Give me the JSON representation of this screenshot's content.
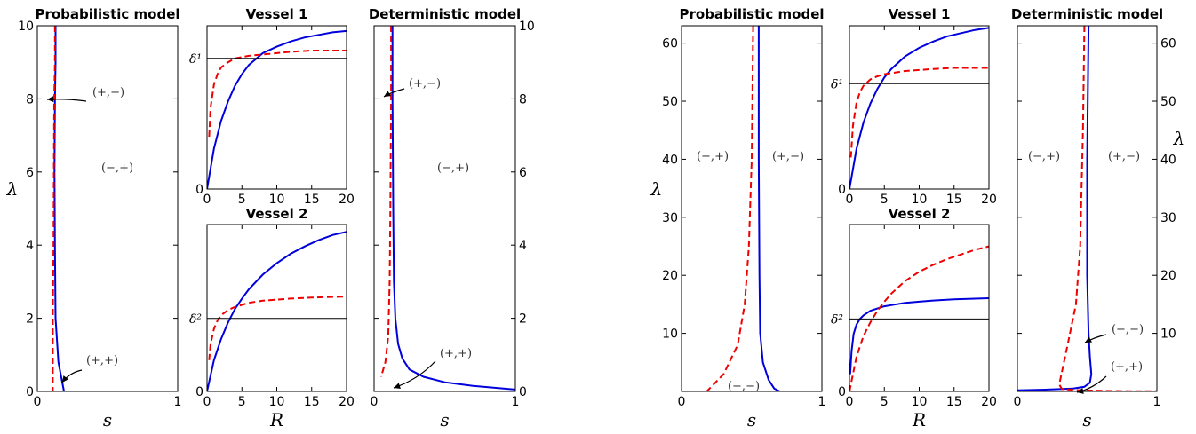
{
  "chart_data": [
    {
      "type": "line",
      "figure": "left",
      "title": "Probabilistic model",
      "xlabel": "s",
      "ylabel": "λ",
      "xlim": [
        0,
        1
      ],
      "ylim": [
        0,
        10
      ],
      "xticks": [
        "0",
        "1"
      ],
      "yticks": [
        "0",
        "2",
        "4",
        "6",
        "8",
        "10"
      ],
      "series": [
        {
          "color": "#0000dd",
          "style": "solid",
          "x": [
            0.13,
            0.13,
            0.125,
            0.122,
            0.125,
            0.13,
            0.15,
            0.19
          ],
          "y": [
            10,
            9,
            8,
            6,
            4,
            2,
            0.8,
            0
          ]
        },
        {
          "color": "#ee0000",
          "style": "dashed",
          "x": [
            0.125,
            0.125,
            0.12,
            0.118,
            0.115,
            0.11,
            0.11
          ],
          "y": [
            10,
            9,
            8,
            6,
            4,
            2,
            0
          ]
        }
      ],
      "annotations": [
        "(+,−)",
        "(−,+)",
        "(+,+)"
      ]
    },
    {
      "type": "line",
      "figure": "left",
      "title": "Vessel 1",
      "xlim": [
        0,
        20
      ],
      "ylim": [
        0,
        1.25
      ],
      "xticks": [
        "0",
        "5",
        "10",
        "15",
        "20"
      ],
      "yticks": [
        "0"
      ],
      "hline_label": "δ¹",
      "hline_y": 1,
      "series": [
        {
          "color": "#0000dd",
          "style": "solid",
          "x": [
            0,
            1,
            2,
            3,
            4,
            5,
            6,
            8,
            10,
            12,
            14,
            16,
            18,
            20
          ],
          "y": [
            0,
            0.31,
            0.52,
            0.67,
            0.79,
            0.88,
            0.95,
            1.04,
            1.09,
            1.13,
            1.16,
            1.18,
            1.2,
            1.21
          ]
        },
        {
          "color": "#ee0000",
          "style": "dashed",
          "x": [
            0.3,
            0.5,
            1,
            1.5,
            2,
            3,
            4,
            5,
            6,
            8,
            10,
            12,
            15,
            20
          ],
          "y": [
            0.4,
            0.62,
            0.8,
            0.88,
            0.93,
            0.97,
            1.0,
            1.01,
            1.02,
            1.03,
            1.04,
            1.05,
            1.06,
            1.06
          ]
        }
      ]
    },
    {
      "type": "line",
      "figure": "left",
      "title": "Vessel 2",
      "xlabel": "R",
      "xlim": [
        0,
        20
      ],
      "ylim": [
        0,
        1.6
      ],
      "xticks": [
        "0",
        "5",
        "10",
        "15",
        "20"
      ],
      "yticks": [
        "0"
      ],
      "hline_label": "δ²",
      "hline_y": 0.7,
      "series": [
        {
          "color": "#0000dd",
          "style": "solid",
          "x": [
            0,
            1,
            2,
            3,
            4,
            5,
            6,
            8,
            10,
            12,
            14,
            16,
            18,
            20
          ],
          "y": [
            0,
            0.3,
            0.5,
            0.66,
            0.79,
            0.89,
            0.98,
            1.12,
            1.23,
            1.32,
            1.39,
            1.45,
            1.5,
            1.53
          ]
        },
        {
          "color": "#ee0000",
          "style": "dashed",
          "x": [
            0.3,
            0.5,
            1,
            1.5,
            2,
            3,
            4,
            5,
            6,
            8,
            10,
            12,
            15,
            20
          ],
          "y": [
            0.3,
            0.45,
            0.6,
            0.68,
            0.73,
            0.78,
            0.81,
            0.83,
            0.85,
            0.87,
            0.88,
            0.89,
            0.9,
            0.91
          ]
        }
      ]
    },
    {
      "type": "line",
      "figure": "left",
      "title": "Deterministic model",
      "xlabel": "s",
      "xlim": [
        0,
        1
      ],
      "ylim": [
        0,
        10
      ],
      "xticks": [
        "0",
        "1"
      ],
      "yticks": [
        "0",
        "2",
        "4",
        "6",
        "8",
        "10"
      ],
      "series": [
        {
          "color": "#0000dd",
          "style": "solid",
          "x": [
            0.13,
            0.13,
            0.135,
            0.14,
            0.15,
            0.17,
            0.2,
            0.25,
            0.35,
            0.5,
            0.7,
            1.0
          ],
          "y": [
            10,
            8,
            5,
            3,
            2,
            1.3,
            0.9,
            0.6,
            0.4,
            0.25,
            0.15,
            0.05
          ]
        },
        {
          "color": "#ee0000",
          "style": "dashed",
          "x": [
            0.12,
            0.12,
            0.115,
            0.11,
            0.1,
            0.08,
            0.05
          ],
          "y": [
            10,
            8,
            5,
            3,
            1.5,
            0.8,
            0.4
          ]
        }
      ],
      "annotations": [
        "(+,−)",
        "(−,+)",
        "(+,+)"
      ]
    },
    {
      "type": "line",
      "figure": "right",
      "title": "Probabilistic model",
      "xlabel": "s",
      "ylabel": "λ",
      "xlim": [
        0,
        1
      ],
      "ylim": [
        0,
        63
      ],
      "xticks": [
        "0",
        "1"
      ],
      "yticks": [
        "10",
        "20",
        "30",
        "40",
        "50",
        "60"
      ],
      "series": [
        {
          "color": "#0000dd",
          "style": "solid",
          "x": [
            0.55,
            0.55,
            0.555,
            0.56,
            0.58,
            0.62,
            0.66,
            0.7
          ],
          "y": [
            63,
            40,
            20,
            10,
            5,
            2,
            0.5,
            0
          ]
        },
        {
          "color": "#ee0000",
          "style": "dashed",
          "x": [
            0.51,
            0.5,
            0.48,
            0.45,
            0.4,
            0.3,
            0.18
          ],
          "y": [
            63,
            40,
            25,
            15,
            8,
            3,
            0
          ]
        }
      ],
      "annotations": [
        "(−,+)",
        "(+,−)",
        "(−,−)"
      ]
    },
    {
      "type": "line",
      "figure": "right",
      "title": "Vessel 1",
      "xlim": [
        0,
        20
      ],
      "ylim": [
        0,
        1.55
      ],
      "xticks": [
        "0",
        "5",
        "10",
        "15",
        "20"
      ],
      "yticks": [
        "0"
      ],
      "hline_label": "δ¹",
      "hline_y": 1,
      "series": [
        {
          "color": "#0000dd",
          "style": "solid",
          "x": [
            0,
            1,
            2,
            3,
            4,
            5,
            6,
            8,
            10,
            12,
            14,
            16,
            18,
            20
          ],
          "y": [
            0,
            0.38,
            0.63,
            0.81,
            0.95,
            1.06,
            1.14,
            1.26,
            1.34,
            1.4,
            1.45,
            1.48,
            1.51,
            1.53
          ]
        },
        {
          "color": "#ee0000",
          "style": "dashed",
          "x": [
            0.2,
            0.5,
            1,
            1.5,
            2,
            3,
            4,
            5,
            6,
            8,
            10,
            12,
            15,
            20
          ],
          "y": [
            0.3,
            0.6,
            0.82,
            0.92,
            0.98,
            1.04,
            1.07,
            1.09,
            1.1,
            1.12,
            1.13,
            1.14,
            1.15,
            1.15
          ]
        }
      ]
    },
    {
      "type": "line",
      "figure": "right",
      "title": "Vessel 2",
      "xlabel": "R",
      "xlim": [
        0,
        20
      ],
      "ylim": [
        0,
        1.45
      ],
      "xticks": [
        "0",
        "5",
        "10",
        "15",
        "20"
      ],
      "yticks": [
        "0"
      ],
      "hline_label": "δ²",
      "hline_y": 0.63,
      "series": [
        {
          "color": "#0000dd",
          "style": "solid",
          "x": [
            0.1,
            0.3,
            0.6,
            1,
            1.5,
            2,
            3,
            4,
            5,
            6,
            8,
            10,
            12,
            15,
            20
          ],
          "y": [
            0.15,
            0.35,
            0.5,
            0.58,
            0.63,
            0.66,
            0.7,
            0.72,
            0.74,
            0.75,
            0.77,
            0.78,
            0.79,
            0.8,
            0.81
          ]
        },
        {
          "color": "#ee0000",
          "style": "dashed",
          "x": [
            0,
            1,
            2,
            3,
            4,
            5,
            6,
            8,
            10,
            12,
            14,
            16,
            18,
            20
          ],
          "y": [
            0,
            0.3,
            0.48,
            0.6,
            0.7,
            0.78,
            0.85,
            0.96,
            1.04,
            1.1,
            1.15,
            1.19,
            1.23,
            1.26
          ]
        }
      ]
    },
    {
      "type": "line",
      "figure": "right",
      "title": "Deterministic model",
      "xlabel": "s",
      "ylabel": "λ",
      "xlim": [
        0,
        1
      ],
      "ylim": [
        0,
        63
      ],
      "xticks": [
        "0",
        "1"
      ],
      "yticks": [
        "10",
        "20",
        "30",
        "40",
        "50",
        "60"
      ],
      "series": [
        {
          "color": "#0000dd",
          "style": "solid",
          "x": [
            0.51,
            0.5,
            0.5,
            0.51,
            0.52,
            0.53,
            0.52,
            0.48,
            0.4,
            0.2,
            0.0
          ],
          "y": [
            63,
            40,
            20,
            10,
            6,
            3,
            1.5,
            0.8,
            0.5,
            0.3,
            0.2
          ]
        },
        {
          "color": "#ee0000",
          "style": "dashed",
          "x": [
            0.48,
            0.47,
            0.46,
            0.45,
            0.42,
            0.36,
            0.3,
            0.32,
            0.45,
            0.6,
            0.8,
            1.0
          ],
          "y": [
            63,
            45,
            35,
            25,
            15,
            8,
            1.2,
            0.4,
            0.2,
            0.1,
            0.05,
            0.05
          ]
        }
      ],
      "annotations": [
        "(−,+)",
        "(+,−)",
        "(−,−)",
        "(+,+)"
      ]
    }
  ]
}
